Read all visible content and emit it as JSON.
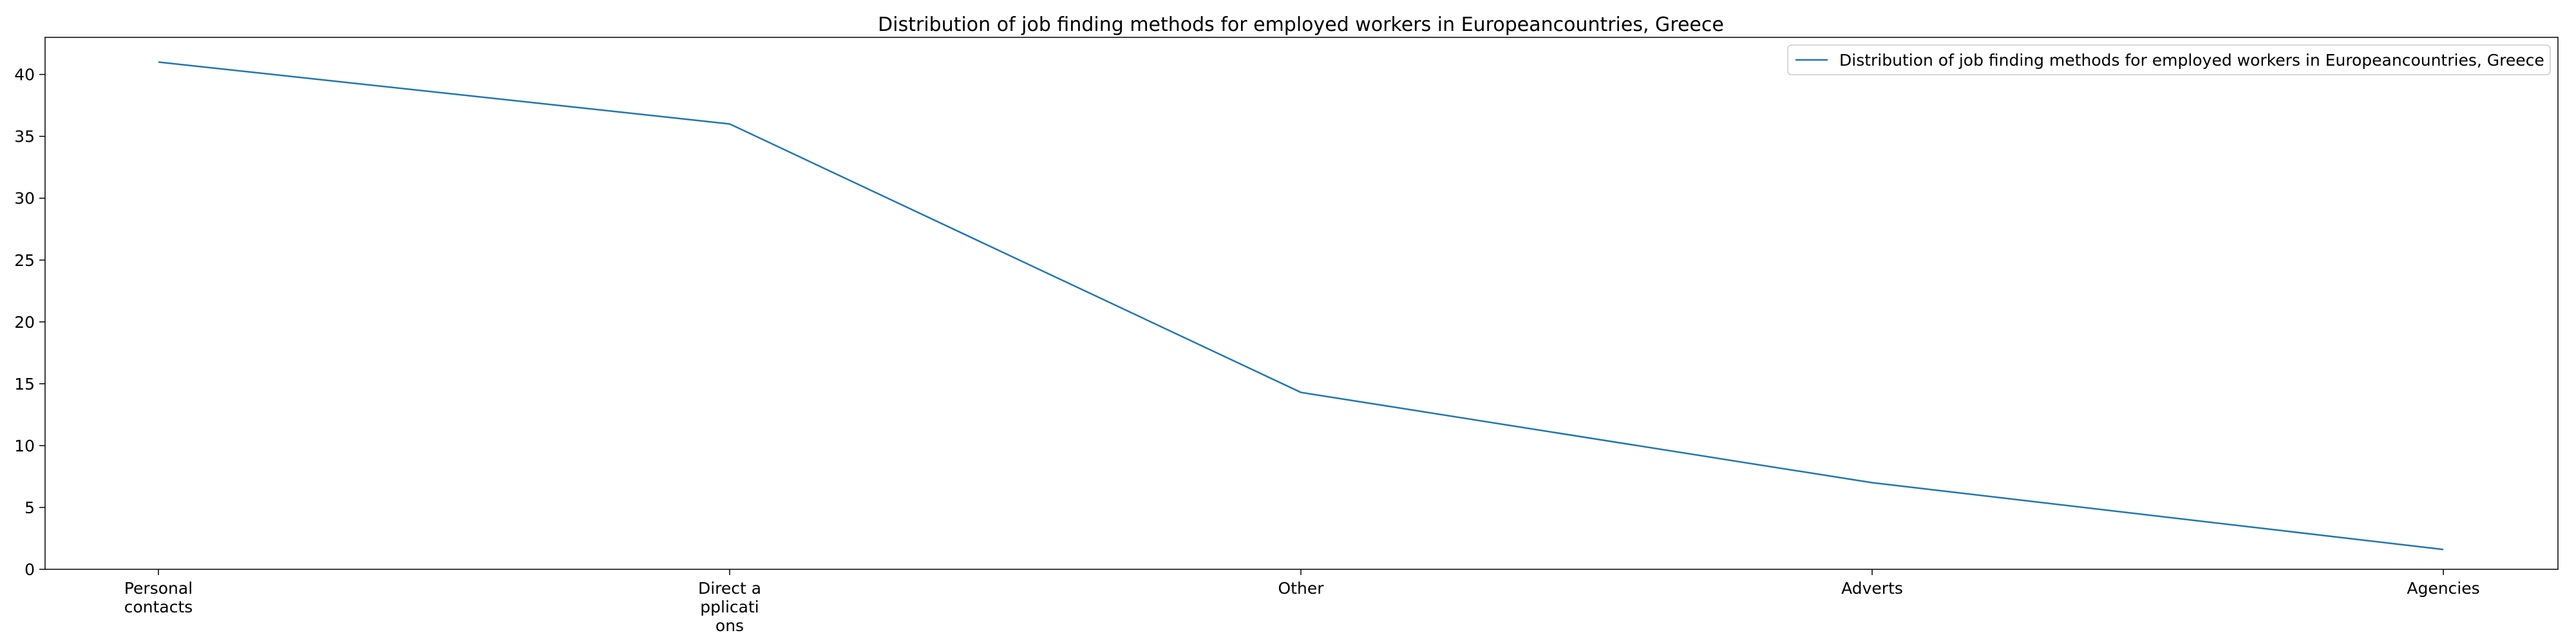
{
  "chart_data": {
    "type": "line",
    "title": "Distribution of job finding methods for employed workers in Europeancountries, Greece",
    "xlabel": "",
    "ylabel": "",
    "categories": [
      [
        "Personal",
        "contacts"
      ],
      [
        "Direct a",
        "pplicati",
        "ons"
      ],
      [
        "Other"
      ],
      [
        "Adverts"
      ],
      [
        "Agencies"
      ]
    ],
    "series": [
      {
        "name": "Distribution of job finding methods for employed workers in Europeancountries, Greece",
        "values": [
          41.0,
          36.0,
          14.3,
          7.0,
          1.6
        ],
        "color": "#1f77b4"
      }
    ],
    "ylim": [
      0,
      43
    ],
    "yticks": [
      0,
      5,
      10,
      15,
      20,
      25,
      30,
      35,
      40
    ],
    "grid": false,
    "legend_position": "top-right"
  }
}
